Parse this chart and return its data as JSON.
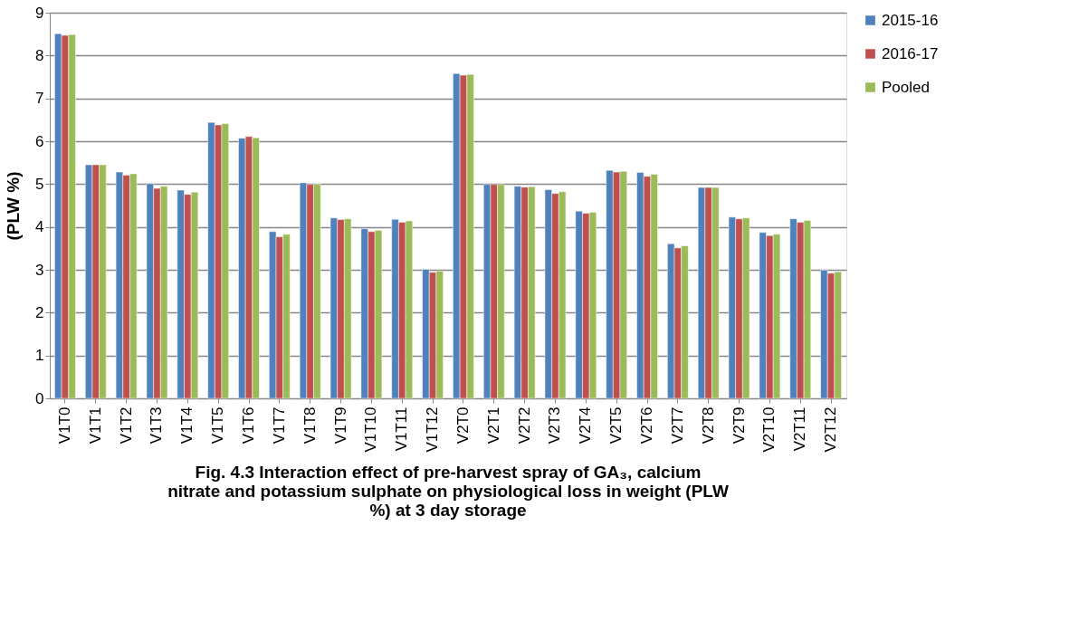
{
  "chart_data": {
    "type": "bar",
    "title": "Fig. 4.3 Interaction effect of pre-harvest spray of GA₃, calcium nitrate and potassium sulphate  on physiological loss in weight (PLW %) at 3 day storage",
    "ylabel": "(PLW %)",
    "categories": [
      "V1T0",
      "V1T1",
      "V1T2",
      "V1T3",
      "V1T4",
      "V1T5",
      "V1T6",
      "V1T7",
      "V1T8",
      "V1T9",
      "V1T10",
      "V1T11",
      "V1T12",
      "V2T0",
      "V2T1",
      "V2T2",
      "V2T3",
      "V2T4",
      "V2T5",
      "V2T6",
      "V2T7",
      "V2T8",
      "V2T9",
      "V2T10",
      "V2T11",
      "V2T12"
    ],
    "series": [
      {
        "name": "2015-16",
        "color": "#4f81bd",
        "values": [
          8.51,
          5.45,
          5.28,
          5.01,
          4.86,
          6.44,
          6.07,
          3.89,
          5.03,
          4.21,
          3.96,
          4.18,
          3.01,
          7.58,
          4.99,
          4.95,
          4.87,
          4.37,
          5.32,
          5.27,
          3.61,
          4.92,
          4.23,
          3.87,
          4.19,
          2.99
        ]
      },
      {
        "name": "2016-17",
        "color": "#c0504d",
        "values": [
          8.47,
          5.45,
          5.21,
          4.9,
          4.76,
          6.38,
          6.11,
          3.77,
          4.99,
          4.17,
          3.89,
          4.11,
          2.94,
          7.54,
          4.99,
          4.93,
          4.78,
          4.32,
          5.28,
          5.18,
          3.51,
          4.92,
          4.19,
          3.8,
          4.11,
          2.92
        ]
      },
      {
        "name": "Pooled",
        "color": "#9bbb59",
        "values": [
          8.49,
          5.45,
          5.24,
          4.95,
          4.81,
          6.41,
          6.08,
          3.83,
          5.0,
          4.19,
          3.92,
          4.14,
          2.97,
          7.56,
          4.99,
          4.94,
          4.82,
          4.34,
          5.3,
          5.23,
          3.56,
          4.92,
          4.21,
          3.83,
          4.15,
          2.95
        ]
      }
    ],
    "ylim": [
      0,
      9
    ],
    "yticks": [
      0,
      1,
      2,
      3,
      4,
      5,
      6,
      7,
      8,
      9
    ],
    "grid": "y",
    "legend": "right"
  }
}
